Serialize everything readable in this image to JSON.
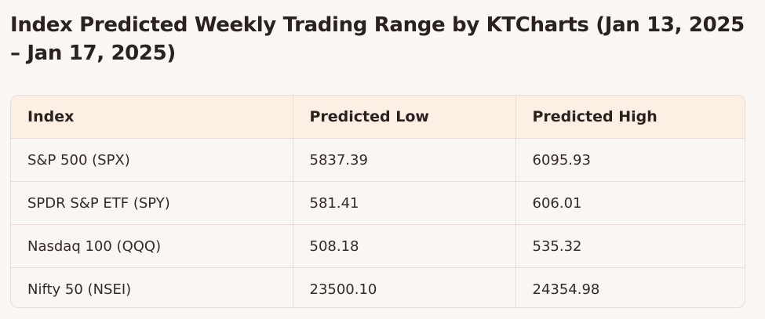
{
  "title": "Index Predicted Weekly Trading Range by KTCharts (Jan 13, 2025 – Jan 17, 2025)",
  "table": {
    "headers": [
      "Index",
      "Predicted Low",
      "Predicted High"
    ],
    "rows": [
      [
        "S&P 500 (SPX)",
        "5837.39",
        "6095.93"
      ],
      [
        "SPDR S&P ETF (SPY)",
        "581.41",
        "606.01"
      ],
      [
        "Nasdaq 100 (QQQ)",
        "508.18",
        "535.32"
      ],
      [
        "Nifty 50 (NSEI)",
        "23500.10",
        "24354.98"
      ]
    ]
  },
  "colors": {
    "page_background": "#fbf7f4",
    "header_background": "#fcefe3",
    "border": "#e8ddd6",
    "text": "#2a221f"
  }
}
